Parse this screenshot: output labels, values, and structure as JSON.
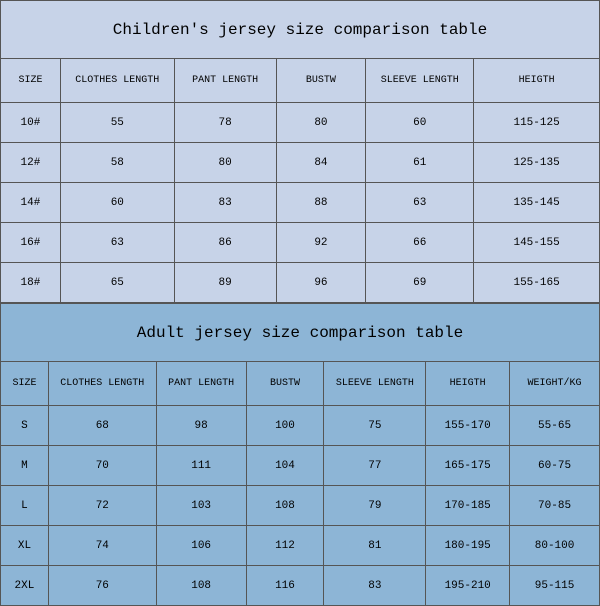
{
  "children_table": {
    "type": "table",
    "title": "Children's jersey size comparison table",
    "background_color": "#c7d3e8",
    "border_color": "#555555",
    "text_color": "#222222",
    "title_fontsize": 16,
    "header_fontsize": 10,
    "cell_fontsize": 11,
    "columns": [
      "SIZE",
      "CLOTHES LENGTH",
      "PANT LENGTH",
      "BUSTW",
      "SLEEVE LENGTH",
      "HEIGTH"
    ],
    "column_widths_pct": [
      10,
      19,
      17,
      15,
      18,
      21
    ],
    "rows": [
      [
        "10#",
        "55",
        "78",
        "80",
        "60",
        "115-125"
      ],
      [
        "12#",
        "58",
        "80",
        "84",
        "61",
        "125-135"
      ],
      [
        "14#",
        "60",
        "83",
        "88",
        "63",
        "135-145"
      ],
      [
        "16#",
        "63",
        "86",
        "92",
        "66",
        "145-155"
      ],
      [
        "18#",
        "65",
        "89",
        "96",
        "69",
        "155-165"
      ]
    ]
  },
  "adult_table": {
    "type": "table",
    "title": "Adult jersey size comparison table",
    "background_color": "#8db5d6",
    "border_color": "#555555",
    "text_color": "#222222",
    "title_fontsize": 16,
    "header_fontsize": 10,
    "cell_fontsize": 11,
    "columns": [
      "SIZE",
      "CLOTHES LENGTH",
      "PANT LENGTH",
      "BUSTW",
      "SLEEVE LENGTH",
      "HEIGTH",
      "WEIGHT/KG"
    ],
    "column_widths_pct": [
      8,
      18,
      15,
      13,
      17,
      14,
      15
    ],
    "rows": [
      [
        "S",
        "68",
        "98",
        "100",
        "75",
        "155-170",
        "55-65"
      ],
      [
        "M",
        "70",
        "111",
        "104",
        "77",
        "165-175",
        "60-75"
      ],
      [
        "L",
        "72",
        "103",
        "108",
        "79",
        "170-185",
        "70-85"
      ],
      [
        "XL",
        "74",
        "106",
        "112",
        "81",
        "180-195",
        "80-100"
      ],
      [
        "2XL",
        "76",
        "108",
        "116",
        "83",
        "195-210",
        "95-115"
      ]
    ]
  }
}
